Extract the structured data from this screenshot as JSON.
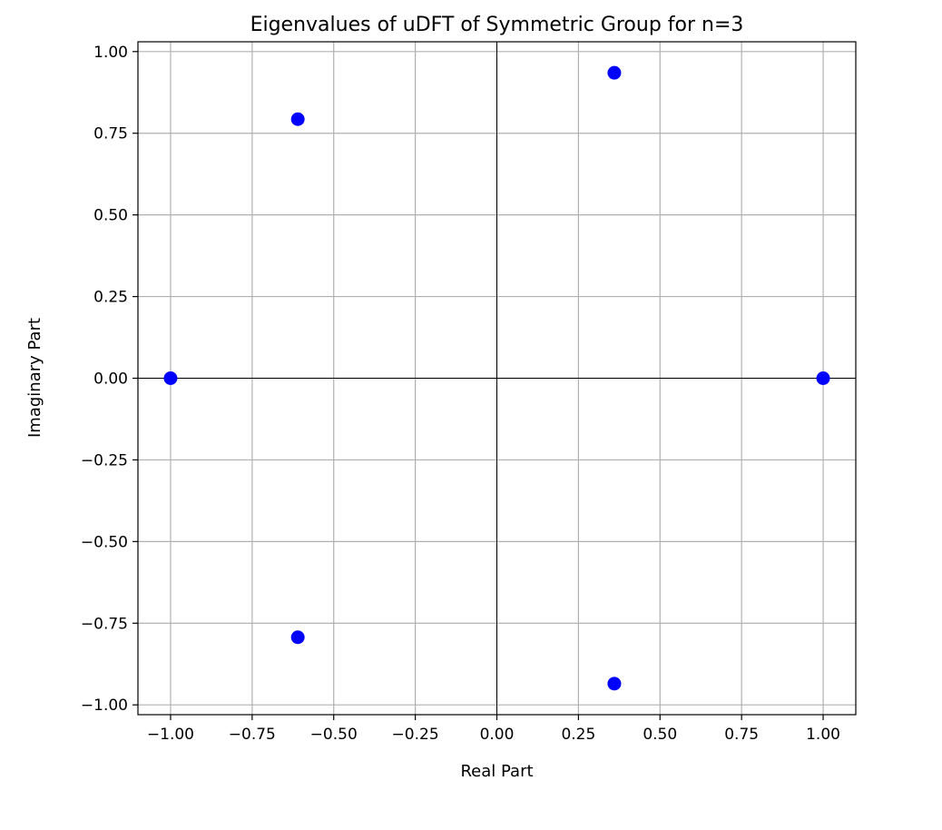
{
  "chart_data": {
    "type": "scatter",
    "title": "Eigenvalues of uDFT of Symmetric Group for n=3",
    "xlabel": "Real Part",
    "ylabel": "Imaginary Part",
    "xlim": [
      -1.1,
      1.1
    ],
    "ylim": [
      -1.03,
      1.03
    ],
    "xticks": [
      -1.0,
      -0.75,
      -0.5,
      -0.25,
      0.0,
      0.25,
      0.5,
      0.75,
      1.0
    ],
    "yticks": [
      -1.0,
      -0.75,
      -0.5,
      -0.25,
      0.0,
      0.25,
      0.5,
      0.75,
      1.0
    ],
    "xtick_labels": [
      "−1.00",
      "−0.75",
      "−0.50",
      "−0.25",
      "0.00",
      "0.25",
      "0.50",
      "0.75",
      "1.00"
    ],
    "ytick_labels": [
      "−1.00",
      "−0.75",
      "−0.50",
      "−0.25",
      "0.00",
      "0.25",
      "0.50",
      "0.75",
      "1.00"
    ],
    "grid": true,
    "reference_lines": {
      "x": 0,
      "y": 0
    },
    "point_color": "#0000ff",
    "points": [
      {
        "x": 1.0,
        "y": 0.0
      },
      {
        "x": -1.0,
        "y": 0.0
      },
      {
        "x": 0.36,
        "y": 0.935
      },
      {
        "x": 0.36,
        "y": -0.935
      },
      {
        "x": -0.61,
        "y": 0.793
      },
      {
        "x": -0.61,
        "y": -0.793
      }
    ]
  }
}
